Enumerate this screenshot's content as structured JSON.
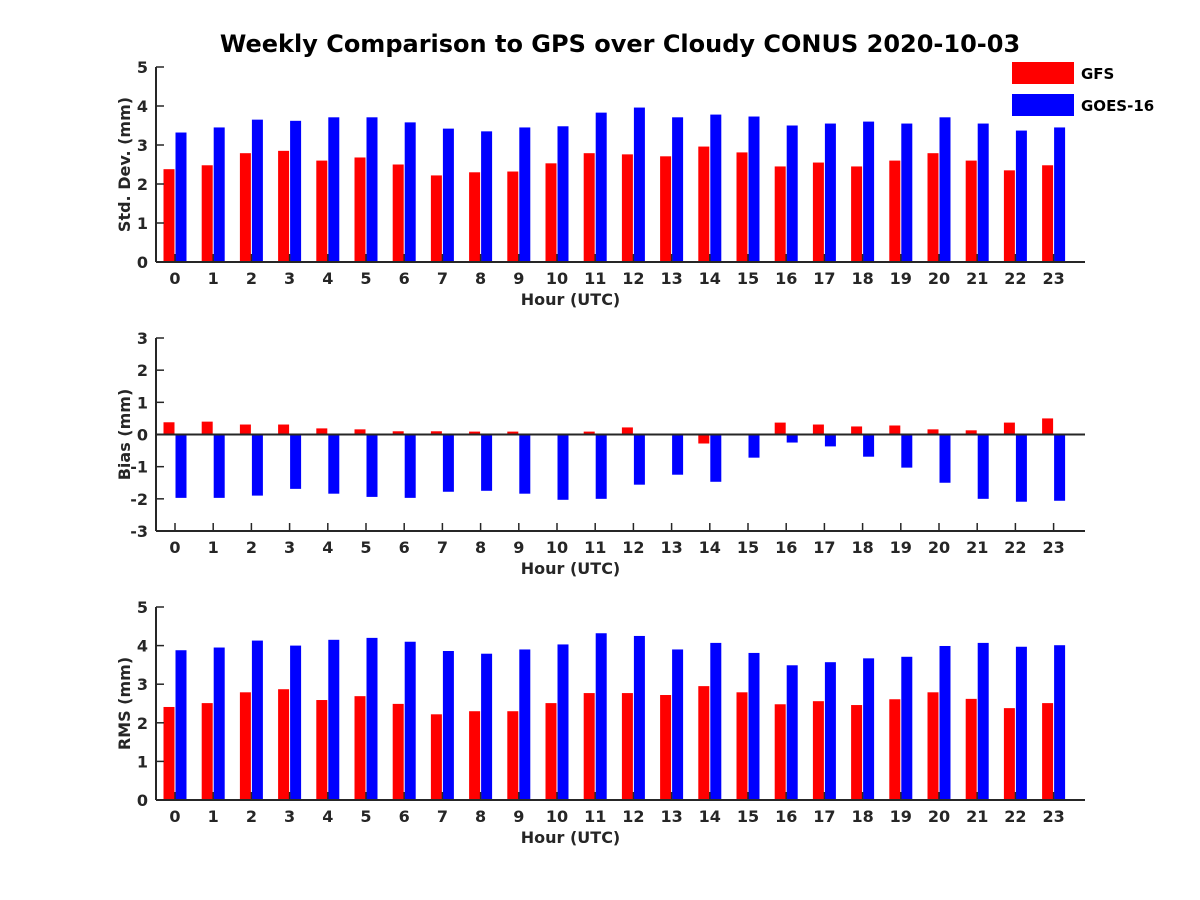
{
  "chart_data": {
    "type": "bar",
    "title": "Weekly Comparison to GPS over Cloudy CONUS 2020-10-03",
    "categories": [
      "0",
      "1",
      "2",
      "3",
      "4",
      "5",
      "6",
      "7",
      "8",
      "9",
      "10",
      "11",
      "12",
      "13",
      "14",
      "15",
      "16",
      "17",
      "18",
      "19",
      "20",
      "21",
      "22",
      "23"
    ],
    "legend": {
      "placement": "top-right",
      "entries": [
        {
          "name": "GFS",
          "color": "#ff0000"
        },
        {
          "name": "GOES-16",
          "color": "#0000ff"
        }
      ]
    },
    "panels": [
      {
        "id": "std",
        "xlabel": "Hour (UTC)",
        "ylabel": "Std. Dev. (mm)",
        "ylim": [
          0,
          5
        ],
        "yticks": [
          0,
          1,
          2,
          3,
          4,
          5
        ],
        "series": [
          {
            "name": "GFS",
            "color": "#ff0000",
            "values": [
              2.38,
              2.48,
              2.79,
              2.85,
              2.6,
              2.68,
              2.5,
              2.22,
              2.3,
              2.32,
              2.53,
              2.79,
              2.76,
              2.71,
              2.96,
              2.81,
              2.45,
              2.55,
              2.45,
              2.6,
              2.79,
              2.6,
              2.35,
              2.48
            ]
          },
          {
            "name": "GOES-16",
            "color": "#0000ff",
            "values": [
              3.32,
              3.45,
              3.65,
              3.62,
              3.71,
              3.71,
              3.58,
              3.42,
              3.35,
              3.45,
              3.48,
              3.83,
              3.96,
              3.71,
              3.78,
              3.73,
              3.5,
              3.55,
              3.6,
              3.55,
              3.71,
              3.55,
              3.37,
              3.45
            ]
          }
        ]
      },
      {
        "id": "bias",
        "xlabel": "Hour (UTC)",
        "ylabel": "Bias (mm)",
        "ylim": [
          -3,
          3
        ],
        "yticks": [
          -3,
          -2,
          -1,
          0,
          1,
          2,
          3
        ],
        "series": [
          {
            "name": "GFS",
            "color": "#ff0000",
            "values": [
              0.38,
              0.4,
              0.31,
              0.31,
              0.19,
              0.16,
              0.1,
              0.1,
              0.09,
              0.09,
              0.0,
              0.09,
              0.22,
              0.03,
              -0.28,
              0.0,
              0.37,
              0.31,
              0.25,
              0.28,
              0.16,
              0.13,
              0.37,
              0.5
            ]
          },
          {
            "name": "GOES-16",
            "color": "#0000ff",
            "values": [
              -1.97,
              -1.97,
              -1.9,
              -1.69,
              -1.84,
              -1.94,
              -1.97,
              -1.78,
              -1.75,
              -1.84,
              -2.03,
              -2.0,
              -1.56,
              -1.25,
              -1.47,
              -0.72,
              -0.25,
              -0.37,
              -0.69,
              -1.03,
              -1.5,
              -2.0,
              -2.09,
              -2.06
            ]
          }
        ]
      },
      {
        "id": "rms",
        "xlabel": "Hour (UTC)",
        "ylabel": "RMS (mm)",
        "ylim": [
          0,
          5
        ],
        "yticks": [
          0,
          1,
          2,
          3,
          4,
          5
        ],
        "series": [
          {
            "name": "GFS",
            "color": "#ff0000",
            "values": [
              2.41,
              2.51,
              2.79,
              2.87,
              2.59,
              2.69,
              2.49,
              2.22,
              2.3,
              2.3,
              2.51,
              2.77,
              2.77,
              2.72,
              2.95,
              2.79,
              2.48,
              2.56,
              2.46,
              2.61,
              2.79,
              2.62,
              2.38,
              2.51
            ]
          },
          {
            "name": "GOES-16",
            "color": "#0000ff",
            "values": [
              3.88,
              3.95,
              4.13,
              4.0,
              4.15,
              4.2,
              4.1,
              3.86,
              3.79,
              3.9,
              4.03,
              4.32,
              4.25,
              3.9,
              4.07,
              3.81,
              3.49,
              3.57,
              3.67,
              3.71,
              3.99,
              4.07,
              3.97,
              4.01
            ]
          }
        ]
      }
    ]
  }
}
